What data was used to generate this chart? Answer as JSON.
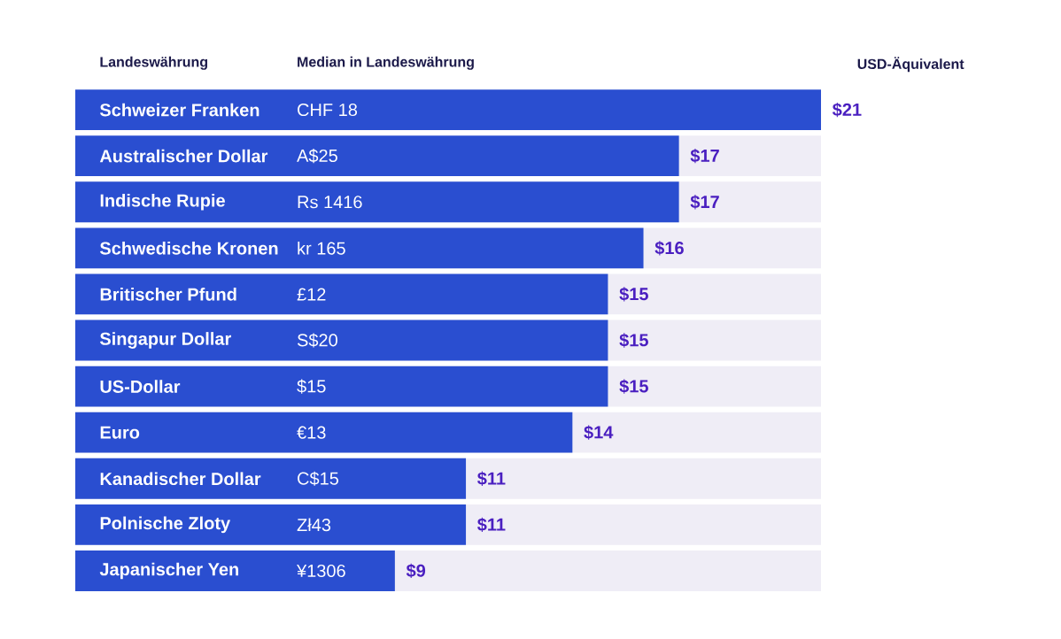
{
  "chart_data": {
    "type": "bar",
    "orientation": "horizontal",
    "ylabel": "Landeswährung",
    "xlabel": "USD-Äquivalent",
    "categories": [
      "Schweizer Franken",
      "Australischer Dollar",
      "Indische Rupie",
      "Schwedische Kronen",
      "Britischer Pfund",
      "Singapur Dollar",
      "US-Dollar",
      "Euro",
      "Kanadischer Dollar",
      "Polnische Zloty",
      "Japanischer Yen"
    ],
    "values": [
      21,
      17,
      17,
      16,
      15,
      15,
      15,
      14,
      11,
      11,
      9
    ],
    "value_labels": [
      "$21",
      "$17",
      "$17",
      "$16",
      "$15",
      "$15",
      "$15",
      "$14",
      "$11",
      "$11",
      "$9"
    ],
    "color": "#2a4ed0",
    "xlim": [
      0,
      21
    ],
    "tick_labels": "y",
    "annotations": [
      "Median in Landeswährung",
      {
        "text": "CHF 18",
        "y": "Schweizer Franken"
      },
      {
        "text": "A$25",
        "y": "Australischer Dollar"
      },
      {
        "text": "Rs 1416",
        "y": "Indische Rupie"
      },
      {
        "text": "kr 165",
        "y": "Schwedische Kronen"
      },
      {
        "text": "£12",
        "y": "Britischer Pfund"
      },
      {
        "text": "S$20",
        "y": "Singapur Dollar"
      },
      {
        "text": "$15",
        "y": "US-Dollar"
      },
      {
        "text": "€13",
        "y": "Euro"
      },
      {
        "text": "C$15",
        "y": "Kanadischer Dollar"
      },
      {
        "text": "Zł43",
        "y": "Polnische Zloty"
      },
      {
        "text": "¥1306",
        "y": "Japanischer Yen"
      }
    ]
  }
}
